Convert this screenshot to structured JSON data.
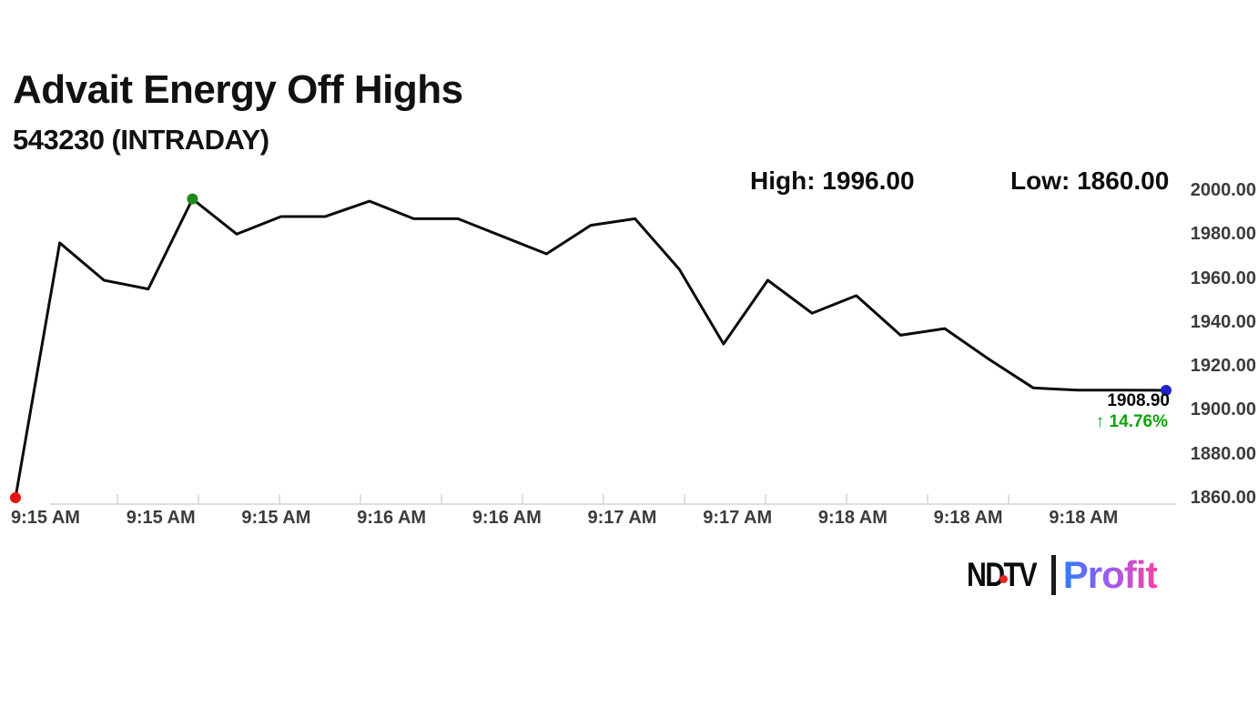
{
  "chart_data": {
    "type": "line",
    "title": "Advait Energy Off Highs",
    "subtitle": "543230 (INTRADAY)",
    "high": 1996.0,
    "low": 1860.0,
    "last_price": 1908.9,
    "change_pct": 14.76,
    "values": [
      1860,
      1976,
      1959,
      1955,
      1996,
      1980,
      1988,
      1988,
      1995,
      1987,
      1987,
      1979,
      1971,
      1984,
      1987,
      1964,
      1930,
      1959,
      1944,
      1952,
      1934,
      1937,
      1923,
      1910,
      1909,
      1909,
      1908.9
    ],
    "x_tick_labels": [
      "9:15 AM",
      "9:15 AM",
      "9:15 AM",
      "9:16 AM",
      "9:16 AM",
      "9:17 AM",
      "9:17 AM",
      "9:18 AM",
      "9:18 AM",
      "9:18 AM"
    ],
    "y_tick_labels": [
      "2000.00",
      "1980.00",
      "1960.00",
      "1940.00",
      "1920.00",
      "1900.00",
      "1880.00",
      "1860.00"
    ],
    "ylim": [
      1860,
      2000
    ],
    "grid": false,
    "legend": false,
    "marker_notes": "red dot = session start/low, green dot = high, blue dot = latest"
  },
  "annotations": {
    "high_label": "High: 1996.00",
    "low_label": "Low: 1860.00",
    "last_price_label": "1908.90",
    "change_pct_label": "14.76%"
  },
  "icons": {
    "up_arrow": "↑"
  },
  "logo": {
    "ndtv": "NDTV",
    "profit": "Profit"
  },
  "colors": {
    "line": "#0b0b0b",
    "start_dot": "#e81313",
    "high_dot": "#1e8b1e",
    "last_dot": "#2222cc",
    "change_green": "#0ea30e",
    "axis_text": "#3c3c3c",
    "axis_line": "#d4d4d4",
    "ndtv_red": "#e8251f"
  }
}
